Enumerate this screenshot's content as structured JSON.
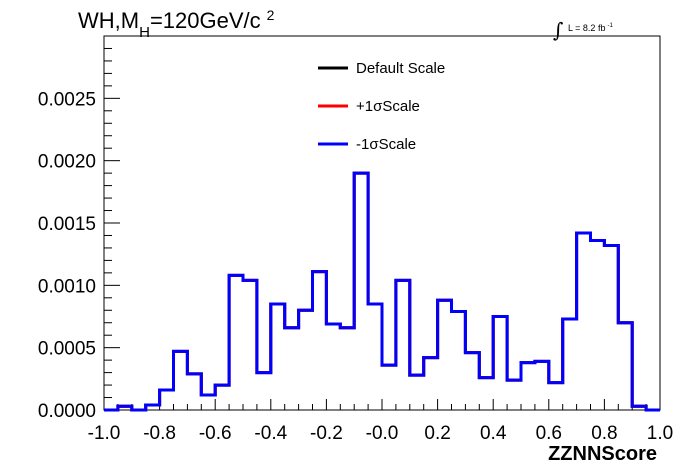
{
  "chart_data": {
    "type": "histogram",
    "title": {
      "main": "WH,M",
      "sub": "H",
      "rest": "=120GeV/c",
      "sup": "2"
    },
    "lumi": {
      "integral": "∫",
      "text": "L = 8.2 fb",
      "sup": "-1"
    },
    "xlabel": "ZZNNScore",
    "ylabel": "",
    "xlim": [
      -1.0,
      1.0
    ],
    "ylim": [
      0,
      0.003
    ],
    "x_ticks": [
      "-1.0",
      "-0.8",
      "-0.6",
      "-0.4",
      "-0.2",
      "-0.0",
      "0.2",
      "0.4",
      "0.6",
      "0.8",
      "1.0"
    ],
    "y_ticks": [
      "0.0000",
      "0.0005",
      "0.0010",
      "0.0015",
      "0.0020",
      "0.0025"
    ],
    "bin_edges": [
      -1.0,
      -0.95,
      -0.9,
      -0.85,
      -0.8,
      -0.75,
      -0.7,
      -0.65,
      -0.6,
      -0.55,
      -0.5,
      -0.45,
      -0.4,
      -0.35,
      -0.3,
      -0.25,
      -0.2,
      -0.15,
      -0.1,
      -0.05,
      0.0,
      0.05,
      0.1,
      0.15,
      0.2,
      0.25,
      0.3,
      0.35,
      0.4,
      0.45,
      0.5,
      0.55,
      0.6,
      0.65,
      0.7,
      0.75,
      0.8,
      0.85,
      0.9,
      0.95,
      1.0
    ],
    "series": [
      {
        "name": "Default Scale",
        "color": "#000000",
        "values": [
          0.0,
          3e-05,
          0.0,
          4e-05,
          0.00016,
          0.00047,
          0.00029,
          0.00012,
          0.0002,
          0.00108,
          0.00104,
          0.0003,
          0.00085,
          0.00066,
          0.0008,
          0.00111,
          0.00069,
          0.00066,
          0.0019,
          0.00085,
          0.00036,
          0.00104,
          0.00028,
          0.00042,
          0.00088,
          0.00079,
          0.00046,
          0.00026,
          0.00075,
          0.00024,
          0.00038,
          0.00039,
          0.00022,
          0.00073,
          0.00142,
          0.00136,
          0.00132,
          0.0007,
          3e-05,
          0.0
        ]
      },
      {
        "name": "+1σScale",
        "color": "#ff0000",
        "values": [
          0.0,
          3e-05,
          0.0,
          4e-05,
          0.00016,
          0.00047,
          0.00029,
          0.00012,
          0.0002,
          0.00108,
          0.00104,
          0.0003,
          0.00085,
          0.00066,
          0.0008,
          0.00111,
          0.00069,
          0.00066,
          0.0019,
          0.00085,
          0.00036,
          0.00104,
          0.00028,
          0.00042,
          0.00088,
          0.00079,
          0.00046,
          0.00026,
          0.00075,
          0.00024,
          0.00038,
          0.00039,
          0.00022,
          0.00073,
          0.00142,
          0.00136,
          0.00132,
          0.0007,
          3e-05,
          0.0
        ]
      },
      {
        "name": "-1σScale",
        "color": "#0000ff",
        "values": [
          0.0,
          3e-05,
          0.0,
          4e-05,
          0.00016,
          0.00047,
          0.00029,
          0.00012,
          0.0002,
          0.00108,
          0.00104,
          0.0003,
          0.00085,
          0.00066,
          0.0008,
          0.00111,
          0.00069,
          0.00066,
          0.0019,
          0.00085,
          0.00036,
          0.00104,
          0.00028,
          0.00042,
          0.00088,
          0.00079,
          0.00046,
          0.00026,
          0.00075,
          0.00024,
          0.00038,
          0.00039,
          0.00022,
          0.00073,
          0.00142,
          0.00136,
          0.00132,
          0.0007,
          3e-05,
          0.0
        ]
      }
    ],
    "legend_position": "top-center",
    "grid": false
  }
}
